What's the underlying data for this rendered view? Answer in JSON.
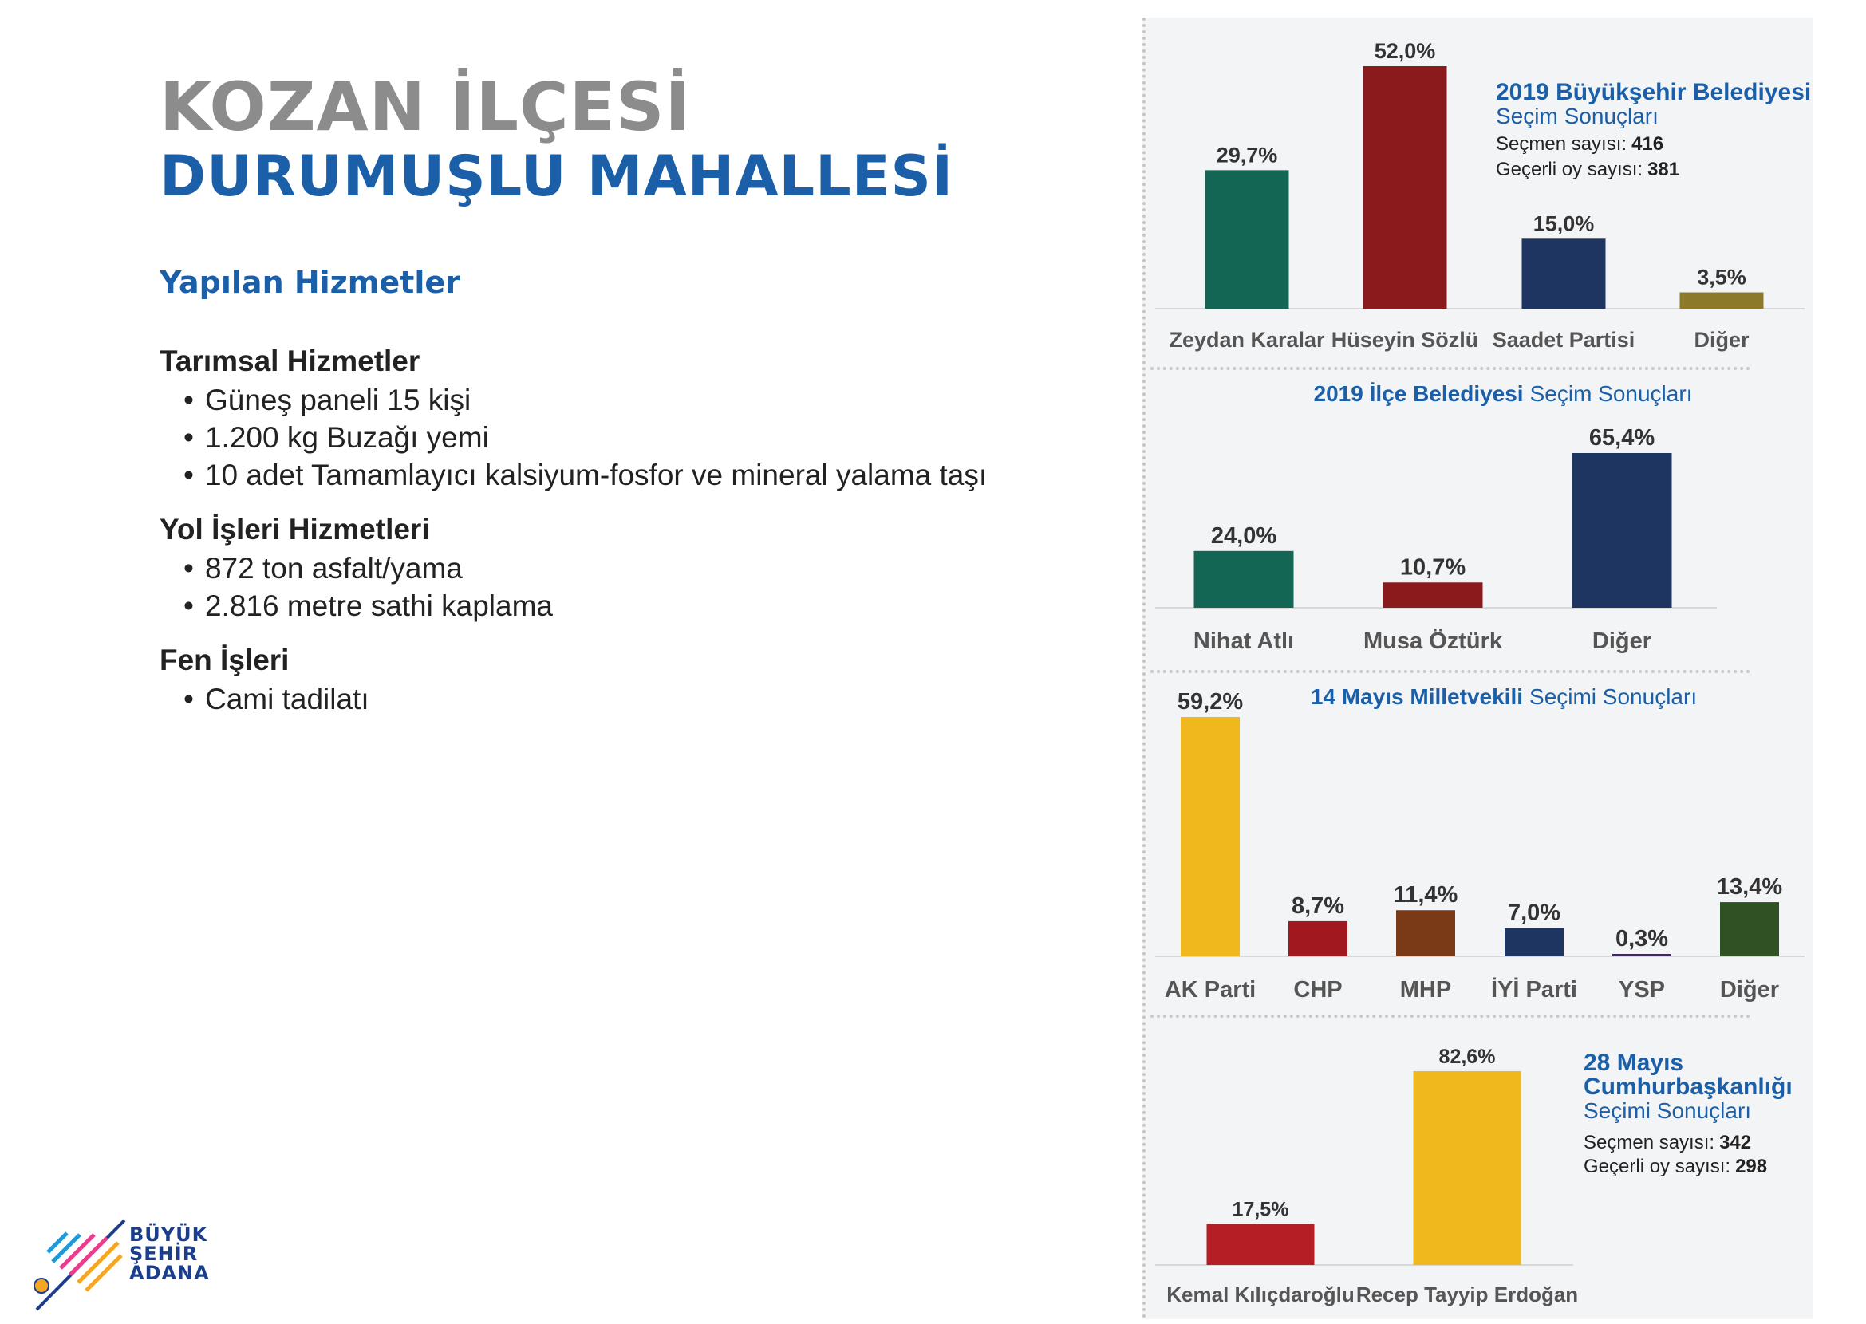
{
  "heading": {
    "line1": "KOZAN İLÇESİ",
    "line2": "DURUMUŞLU MAHALLESİ"
  },
  "services": {
    "title": "Yapılan Hizmetler",
    "sections": [
      {
        "heading": "Tarımsal Hizmetler",
        "items": [
          "Güneş paneli 15 kişi",
          "1.200 kg Buzağı yemi",
          "10 adet Tamamlayıcı kalsiyum-fosfor ve mineral yalama taşı"
        ]
      },
      {
        "heading": "Yol İşleri Hizmetleri",
        "items": [
          "872 ton asfalt/yama",
          "2.816 metre sathi kaplama"
        ]
      },
      {
        "heading": "Fen İşleri",
        "items": [
          "Cami tadilatı"
        ]
      }
    ]
  },
  "charts_info": {
    "c1": {
      "title_bold": "2019 Büyükşehir Belediyesi",
      "title_rest": "Seçim Sonuçları",
      "voters_label": "Seçmen sayısı:",
      "voters": "416",
      "valid_label": "Geçerli oy sayısı:",
      "valid": "381"
    },
    "c2": {
      "title_bold": "2019 İlçe Belediyesi",
      "title_rest": "Seçim Sonuçları"
    },
    "c3": {
      "title_bold": "14 Mayıs Milletvekili",
      "title_rest": "Seçimi Sonuçları"
    },
    "c4": {
      "title_bold_1": "28 Mayıs",
      "title_bold_2": "Cumhurbaşkanlığı",
      "title_rest": "Seçimi Sonuçları",
      "voters_label": "Seçmen sayısı:",
      "voters": "342",
      "valid_label": "Geçerli oy sayısı:",
      "valid": "298"
    }
  },
  "chart_data": [
    {
      "type": "bar",
      "title": "2019 Büyükşehir Belediyesi Seçim Sonuçları",
      "categories": [
        "Zeydan Karalar",
        "Hüseyin Sözlü",
        "Saadet Partisi",
        "Diğer"
      ],
      "values": [
        29.7,
        52.0,
        15.0,
        3.5
      ],
      "labels": [
        "29,7%",
        "52,0%",
        "15,0%",
        "3,5%"
      ],
      "colors": [
        "#146654",
        "#8b1a1d",
        "#1e3461",
        "#8c7a2a"
      ],
      "ylim": [
        0,
        52
      ]
    },
    {
      "type": "bar",
      "title": "2019 İlçe Belediyesi Seçim Sonuçları",
      "categories": [
        "Nihat Atlı",
        "Musa Öztürk",
        "Diğer"
      ],
      "values": [
        24.0,
        10.7,
        65.4
      ],
      "labels": [
        "24,0%",
        "10,7%",
        "65,4%"
      ],
      "colors": [
        "#146654",
        "#8b1a1d",
        "#1e3461"
      ],
      "ylim": [
        0,
        65.4
      ]
    },
    {
      "type": "bar",
      "title": "14 Mayıs Milletvekili Seçimi Sonuçları",
      "categories": [
        "AK Parti",
        "CHP",
        "MHP",
        "İYİ Parti",
        "YSP",
        "Diğer"
      ],
      "values": [
        59.2,
        8.7,
        11.4,
        7.0,
        0.3,
        13.4
      ],
      "labels": [
        "59,2%",
        "8,7%",
        "11,4%",
        "7,0%",
        "0,3%",
        "13,4%"
      ],
      "colors": [
        "#f1b81e",
        "#a1191f",
        "#7a3a18",
        "#1e3461",
        "#3b2a5a",
        "#2f5224"
      ],
      "ylim": [
        0,
        59.2
      ]
    },
    {
      "type": "bar",
      "title": "28 Mayıs Cumhurbaşkanlığı Seçimi Sonuçları",
      "categories": [
        "Kemal Kılıçdaroğlu",
        "Recep Tayyip Erdoğan"
      ],
      "values": [
        17.5,
        82.6
      ],
      "labels": [
        "17,5%",
        "82,6%"
      ],
      "colors": [
        "#b51e24",
        "#f1b81e"
      ],
      "ylim": [
        0,
        82.6
      ]
    }
  ],
  "logo": {
    "line1": "BÜYÜK",
    "line2": "ŞEHİR",
    "line3": "ADANA",
    "colors": [
      "#1f9ad6",
      "#e83e8c",
      "#f5a623",
      "#1b3e8c"
    ]
  }
}
